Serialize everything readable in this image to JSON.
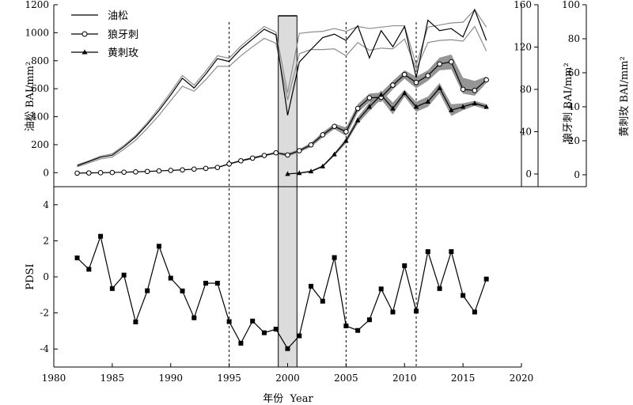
{
  "chart_data": [
    {
      "type": "line",
      "panel": "bai",
      "xlim": [
        1980,
        2020
      ],
      "x_ticks": [
        1980,
        1985,
        1990,
        1995,
        2000,
        2005,
        2010,
        2015,
        2020
      ],
      "reference_lines_x": [
        1995,
        2005,
        2011
      ],
      "shaded_period_x": [
        1999.2,
        2000.8
      ],
      "axes": {
        "left": {
          "label": "油松 BAI/mm²",
          "ylim": [
            -100,
            1200
          ],
          "ticks": [
            0,
            200,
            400,
            600,
            800,
            1000,
            1200
          ],
          "series": "油松"
        },
        "right1": {
          "label": "狼牙刺 BAI/mm²",
          "ylim": [
            -12,
            160
          ],
          "ticks": [
            0,
            40,
            80,
            120,
            160
          ],
          "series": "狼牙刺"
        },
        "right2": {
          "label": "黄刺玫 BAI/mm²",
          "ylim": [
            -7,
            100
          ],
          "ticks": [
            0,
            20,
            40,
            60,
            80,
            100
          ],
          "series": "黄刺玫"
        }
      },
      "legend": {
        "position": "top-left",
        "entries": [
          "油松",
          "狼牙刺",
          "黄刺玫"
        ]
      },
      "series": [
        {
          "name": "油松",
          "axis": "left",
          "marker": "none",
          "x": [
            1982,
            1983,
            1984,
            1985,
            1986,
            1987,
            1988,
            1989,
            1990,
            1991,
            1992,
            1993,
            1994,
            1995,
            1996,
            1997,
            1998,
            1999,
            2000,
            2001,
            2002,
            2003,
            2004,
            2005,
            2006,
            2007,
            2008,
            2009,
            2010,
            2011,
            2012,
            2013,
            2014,
            2015,
            2016,
            2017
          ],
          "values": [
            50,
            80,
            110,
            125,
            185,
            255,
            345,
            445,
            555,
            675,
            605,
            705,
            815,
            795,
            885,
            955,
            1025,
            985,
            410,
            790,
            880,
            965,
            990,
            945,
            1050,
            820,
            1015,
            900,
            1045,
            680,
            1090,
            1015,
            1030,
            970,
            1165,
            945
          ],
          "band_upper": [
            55,
            85,
            118,
            135,
            195,
            265,
            358,
            462,
            575,
            695,
            625,
            725,
            835,
            818,
            905,
            975,
            1045,
            1005,
            570,
            995,
            1005,
            1010,
            1030,
            1010,
            1045,
            1030,
            1040,
            1050,
            1050,
            770,
            1040,
            1055,
            1070,
            1075,
            1165,
            1040
          ],
          "band_lower": [
            42,
            70,
            98,
            112,
            168,
            232,
            318,
            410,
            515,
            618,
            582,
            665,
            760,
            760,
            835,
            900,
            960,
            925,
            520,
            850,
            880,
            880,
            885,
            835,
            930,
            875,
            890,
            885,
            955,
            740,
            930,
            945,
            950,
            940,
            1045,
            870
          ]
        },
        {
          "name": "狼牙刺",
          "axis": "right1",
          "marker": "circle-open",
          "x": [
            1982,
            1983,
            1984,
            1985,
            1986,
            1987,
            1988,
            1989,
            1990,
            1991,
            1992,
            1993,
            1994,
            1995,
            1996,
            1997,
            1998,
            1999,
            2000,
            2001,
            2002,
            2003,
            2004,
            2005,
            2006,
            2007,
            2008,
            2009,
            2010,
            2011,
            2012,
            2013,
            2014,
            2015,
            2016,
            2017
          ],
          "values": [
            0.8,
            1.0,
            1.2,
            1.4,
            1.7,
            2.0,
            2.4,
            2.9,
            3.4,
            3.9,
            4.6,
            5.3,
            6.2,
            9.5,
            12.5,
            15.0,
            17.5,
            20.0,
            18.0,
            22.0,
            27.5,
            37.0,
            45.0,
            40.0,
            62.0,
            72.0,
            72.5,
            84.0,
            94.0,
            86.5,
            93.0,
            104.0,
            106.0,
            80.0,
            79.0,
            89.0
          ],
          "band_upper": [
            1.0,
            1.2,
            1.4,
            1.6,
            1.9,
            2.2,
            2.6,
            3.1,
            3.6,
            4.2,
            4.9,
            5.7,
            6.7,
            10.2,
            13.3,
            16.0,
            18.5,
            21.0,
            19.5,
            23.5,
            29.5,
            39.5,
            47.5,
            44.0,
            66.0,
            76.0,
            77.0,
            88.0,
            98.0,
            92.0,
            98.0,
            110.0,
            113.0,
            91.0,
            88.0,
            92.0
          ],
          "band_lower": [
            0.6,
            0.8,
            1.0,
            1.2,
            1.5,
            1.8,
            2.2,
            2.7,
            3.2,
            3.6,
            4.3,
            4.9,
            5.7,
            8.8,
            11.7,
            14.0,
            16.5,
            19.0,
            16.5,
            20.5,
            25.5,
            34.5,
            42.5,
            36.0,
            58.0,
            68.0,
            68.0,
            80.0,
            90.0,
            81.0,
            88.0,
            98.0,
            99.0,
            76.0,
            74.0,
            86.0
          ]
        },
        {
          "name": "黄刺玫",
          "axis": "right2",
          "marker": "triangle-filled",
          "x": [
            2000,
            2001,
            2002,
            2003,
            2004,
            2005,
            2006,
            2007,
            2008,
            2009,
            2010,
            2011,
            2012,
            2013,
            2014,
            2015,
            2016,
            2017
          ],
          "values": [
            0.5,
            1.0,
            2.0,
            5.0,
            12.0,
            20.0,
            32.0,
            40.0,
            47.0,
            39.0,
            48.0,
            40.0,
            43.0,
            51.0,
            38.0,
            40.0,
            42.0,
            40.0
          ],
          "band_upper": [
            0.7,
            1.3,
            2.5,
            5.6,
            12.9,
            21.5,
            34.0,
            42.5,
            49.5,
            42.5,
            50.0,
            43.0,
            46.0,
            54.0,
            41.5,
            42.0,
            43.5,
            41.5
          ],
          "band_lower": [
            0.3,
            0.7,
            1.5,
            4.4,
            11.1,
            18.5,
            30.0,
            37.5,
            44.5,
            35.5,
            46.0,
            37.0,
            40.0,
            48.0,
            34.5,
            38.0,
            40.5,
            38.5
          ]
        }
      ]
    },
    {
      "type": "line",
      "panel": "pdsi",
      "xlim": [
        1980,
        2020
      ],
      "x_ticks": [
        1980,
        1985,
        1990,
        1995,
        2000,
        2005,
        2010,
        2015,
        2020
      ],
      "xlabel": "年份  Year",
      "ylabel": "PDSI",
      "ylim": [
        -5,
        5
      ],
      "y_ticks": [
        -4,
        -2,
        0,
        2,
        4
      ],
      "reference_lines_x": [
        1995,
        2005,
        2011
      ],
      "shaded_period_x": [
        1999.2,
        2000.8
      ],
      "series": [
        {
          "marker": "square-filled",
          "x": [
            1982,
            1983,
            1984,
            1985,
            1986,
            1987,
            1988,
            1989,
            1990,
            1991,
            1992,
            1993,
            1994,
            1995,
            1996,
            1997,
            1998,
            1999,
            2000,
            2001,
            2002,
            2003,
            2004,
            2005,
            2006,
            2007,
            2008,
            2009,
            2010,
            2011,
            2012,
            2013,
            2014,
            2015,
            2016,
            2017
          ],
          "values": [
            1.05,
            0.42,
            2.25,
            -0.65,
            0.1,
            -2.5,
            -0.77,
            1.7,
            -0.07,
            -0.78,
            -2.27,
            -0.35,
            -0.35,
            -2.48,
            -3.68,
            -2.45,
            -3.1,
            -2.9,
            -3.98,
            -3.27,
            -0.52,
            -1.35,
            1.07,
            -2.72,
            -2.97,
            -2.38,
            -0.67,
            -1.95,
            0.62,
            -1.9,
            1.4,
            -0.65,
            1.4,
            -1.03,
            -1.95,
            -0.12
          ]
        }
      ]
    }
  ]
}
